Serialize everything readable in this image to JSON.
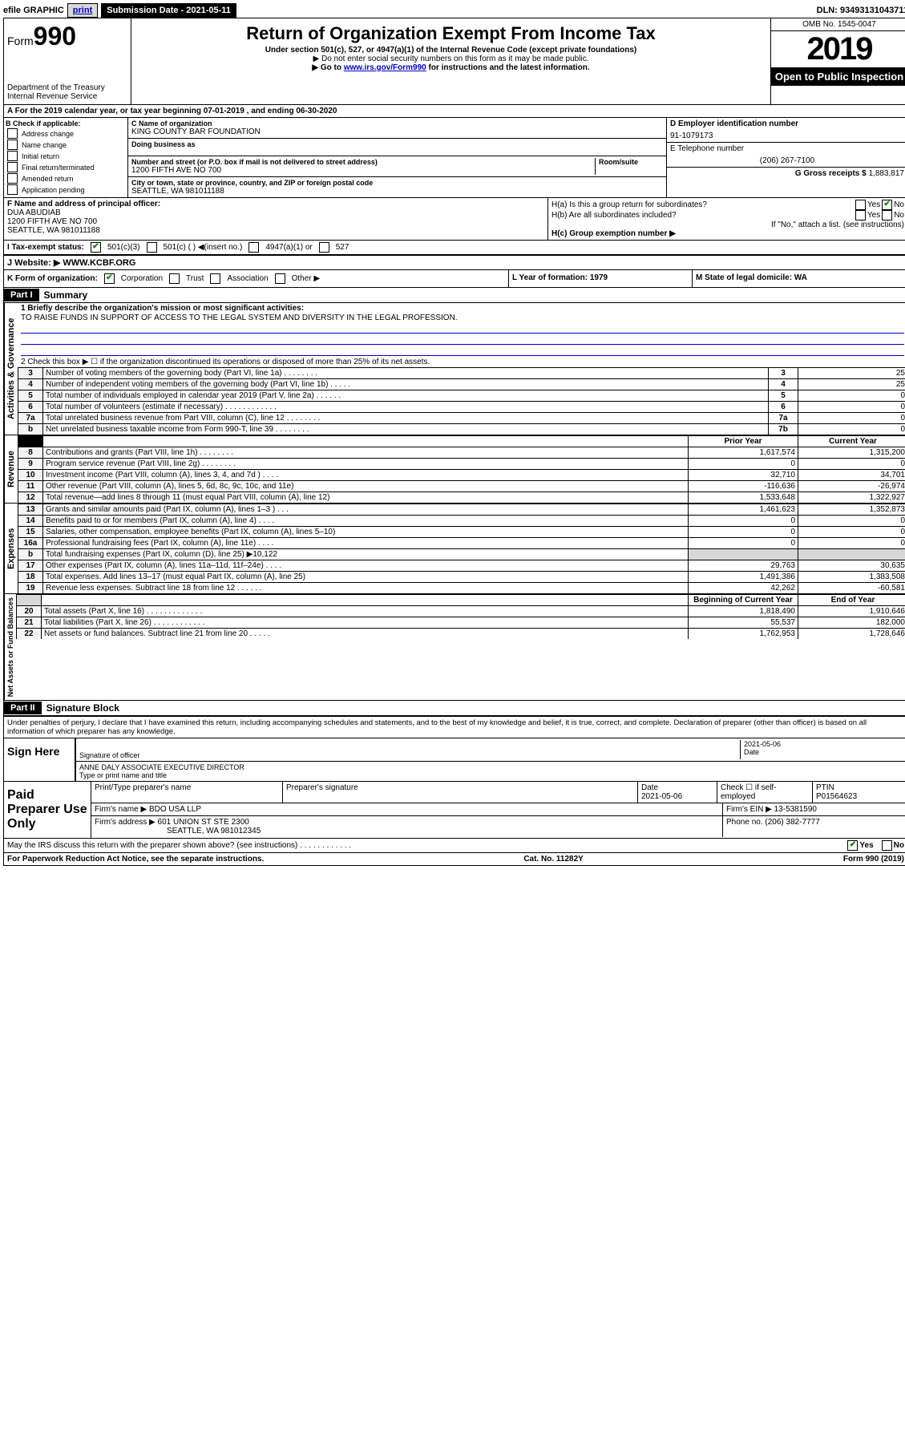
{
  "topbar": {
    "efile_label": "efile GRAPHIC",
    "print": "print",
    "submission": "Submission Date - 2021-05-11",
    "dln": "DLN: 93493131043711"
  },
  "header": {
    "form_prefix": "Form",
    "form_num": "990",
    "dept": "Department of the Treasury",
    "irs": "Internal Revenue Service",
    "title": "Return of Organization Exempt From Income Tax",
    "sub1": "Under section 501(c), 527, or 4947(a)(1) of the Internal Revenue Code (except private foundations)",
    "sub2": "▶ Do not enter social security numbers on this form as it may be made public.",
    "goto_pre": "▶ Go to ",
    "goto_link": "www.irs.gov/Form990",
    "goto_post": " for instructions and the latest information.",
    "omb": "OMB No. 1545-0047",
    "year": "2019",
    "open": "Open to Public Inspection"
  },
  "period": "For the 2019 calendar year, or tax year beginning 07-01-2019    , and ending 06-30-2020",
  "checkB": {
    "label": "B Check if applicable:",
    "addr": "Address change",
    "name": "Name change",
    "init": "Initial return",
    "final": "Final return/terminated",
    "amend": "Amended return",
    "app": "Application pending"
  },
  "entity": {
    "c_label": "C Name of organization",
    "name": "KING COUNTY BAR FOUNDATION",
    "dba_label": "Doing business as",
    "addr_label": "Number and street (or P.O. box if mail is not delivered to street address)",
    "room_label": "Room/suite",
    "addr": "1200 FIFTH AVE NO 700",
    "city_label": "City or town, state or province, country, and ZIP or foreign postal code",
    "city": "SEATTLE, WA  981011188"
  },
  "right": {
    "d_label": "D Employer identification number",
    "ein": "91-1079173",
    "e_label": "E Telephone number",
    "tel": "(206) 267-7100",
    "g_label": "G Gross receipts $",
    "gross": "1,883,817"
  },
  "secF": {
    "label": "F Name and address of principal officer:",
    "name": "DUA ABUDIAB",
    "addr1": "1200 FIFTH AVE NO 700",
    "addr2": "SEATTLE, WA  981011188"
  },
  "secH": {
    "ha": "H(a)  Is this a group return for subordinates?",
    "hb": "H(b)  Are all subordinates included?",
    "hb2": "If \"No,\" attach a list. (see instructions)",
    "hc": "H(c)  Group exemption number ▶",
    "yes": "Yes",
    "no": "No"
  },
  "taxex": {
    "i": "I  Tax-exempt status:",
    "c3": "501(c)(3)",
    "c": "501(c) (   ) ◀(insert no.)",
    "a1": "4947(a)(1) or",
    "n527": "527"
  },
  "website": {
    "j": "J   Website: ▶",
    "url": "WWW.KCBF.ORG"
  },
  "kline": {
    "k": "K Form of organization:",
    "corp": "Corporation",
    "trust": "Trust",
    "assoc": "Association",
    "other": "Other ▶",
    "l": "L Year of formation: 1979",
    "m": "M State of legal domicile: WA"
  },
  "parts": {
    "p1": "Part I",
    "p1t": "Summary",
    "p2": "Part II",
    "p2t": "Signature Block"
  },
  "summary": {
    "l1": "1   Briefly describe the organization's mission or most significant activities:",
    "mission": "TO RAISE FUNDS IN SUPPORT OF ACCESS TO THE LEGAL SYSTEM AND DIVERSITY IN THE LEGAL PROFESSION.",
    "l2": "2   Check this box ▶ ☐  if the organization discontinued its operations or disposed of more than 25% of its net assets.",
    "rows": [
      {
        "n": "3",
        "t": "Number of voting members of the governing body (Part VI, line 1a)  .   .   .   .   .   .   .   .",
        "c": "3",
        "v": "25"
      },
      {
        "n": "4",
        "t": "Number of independent voting members of the governing body (Part VI, line 1b)  .   .   .   .   .",
        "c": "4",
        "v": "25"
      },
      {
        "n": "5",
        "t": "Total number of individuals employed in calendar year 2019 (Part V, line 2a)  .   .   .   .   .   .",
        "c": "5",
        "v": "0"
      },
      {
        "n": "6",
        "t": "Total number of volunteers (estimate if necessary)   .   .   .   .   .   .   .   .   .   .   .   .",
        "c": "6",
        "v": "0"
      },
      {
        "n": "7a",
        "t": "Total unrelated business revenue from Part VIII, column (C), line 12  .   .   .   .   .   .   .   .",
        "c": "7a",
        "v": "0"
      },
      {
        "n": "b",
        "t": "Net unrelated business taxable income from Form 990-T, line 39   .   .   .   .   .   .   .   .",
        "c": "7b",
        "v": "0"
      }
    ],
    "col_prior": "Prior Year",
    "col_curr": "Current Year",
    "rev_rows": [
      {
        "n": "8",
        "t": "Contributions and grants (Part VIII, line 1h)   .   .   .   .   .   .   .   .",
        "p": "1,617,574",
        "c": "1,315,200"
      },
      {
        "n": "9",
        "t": "Program service revenue (Part VIII, line 2g)   .   .   .   .   .   .   .   .",
        "p": "0",
        "c": "0"
      },
      {
        "n": "10",
        "t": "Investment income (Part VIII, column (A), lines 3, 4, and 7d )   .   .   .   .",
        "p": "32,710",
        "c": "34,701"
      },
      {
        "n": "11",
        "t": "Other revenue (Part VIII, column (A), lines 5, 6d, 8c, 9c, 10c, and 11e)",
        "p": "-116,636",
        "c": "-26,974"
      },
      {
        "n": "12",
        "t": "Total revenue—add lines 8 through 11 (must equal Part VIII, column (A), line 12)",
        "p": "1,533,648",
        "c": "1,322,927"
      }
    ],
    "exp_rows": [
      {
        "n": "13",
        "t": "Grants and similar amounts paid (Part IX, column (A), lines 1–3 )   .   .   .",
        "p": "1,461,623",
        "c": "1,352,873"
      },
      {
        "n": "14",
        "t": "Benefits paid to or for members (Part IX, column (A), line 4)   .   .   .   .",
        "p": "0",
        "c": "0"
      },
      {
        "n": "15",
        "t": "Salaries, other compensation, employee benefits (Part IX, column (A), lines 5–10)",
        "p": "0",
        "c": "0"
      },
      {
        "n": "16a",
        "t": "Professional fundraising fees (Part IX, column (A), line 11e)   .   .   .   .",
        "p": "0",
        "c": "0"
      },
      {
        "n": "b",
        "t": "Total fundraising expenses (Part IX, column (D), line 25) ▶10,122",
        "p": "",
        "c": "",
        "blank": true
      },
      {
        "n": "17",
        "t": "Other expenses (Part IX, column (A), lines 11a–11d, 11f–24e)   .   .   .   .",
        "p": "29,763",
        "c": "30,635"
      },
      {
        "n": "18",
        "t": "Total expenses. Add lines 13–17 (must equal Part IX, column (A), line 25)",
        "p": "1,491,386",
        "c": "1,383,508"
      },
      {
        "n": "19",
        "t": "Revenue less expenses. Subtract line 18 from line 12   .   .   .   .   .   .",
        "p": "42,262",
        "c": "-60,581"
      }
    ],
    "col_begin": "Beginning of Current Year",
    "col_end": "End of Year",
    "na_rows": [
      {
        "n": "20",
        "t": "Total assets (Part X, line 16)   .   .   .   .   .   .   .   .   .   .   .   .   .",
        "p": "1,818,490",
        "c": "1,910,646"
      },
      {
        "n": "21",
        "t": "Total liabilities (Part X, line 26)   .   .   .   .   .   .   .   .   .   .   .   .",
        "p": "55,537",
        "c": "182,000"
      },
      {
        "n": "22",
        "t": "Net assets or fund balances. Subtract line 21 from line 20   .   .   .   .   .",
        "p": "1,762,953",
        "c": "1,728,646"
      }
    ],
    "sidetabs": {
      "gov": "Activities & Governance",
      "rev": "Revenue",
      "exp": "Expenses",
      "na": "Net Assets or Fund Balances"
    }
  },
  "perjury": "Under penalties of perjury, I declare that I have examined this return, including accompanying schedules and statements, and to the best of my knowledge and belief, it is true, correct, and complete. Declaration of preparer (other than officer) is based on all information of which preparer has any knowledge.",
  "sign": {
    "here": "Sign Here",
    "sig_of": "Signature of officer",
    "date": "2021-05-06",
    "date_lbl": "Date",
    "name": "ANNE DALY  ASSOCIATE EXECUTIVE DIRECTOR",
    "name_lbl": "Type or print name and title"
  },
  "paid": {
    "title": "Paid Preparer Use Only",
    "h1": "Print/Type preparer's name",
    "h2": "Preparer's signature",
    "h3": "Date",
    "h3v": "2021-05-06",
    "h4": "Check ☐ if self-employed",
    "h5": "PTIN",
    "ptin": "P01564623",
    "firm": "Firm's name     ▶",
    "firmv": "BDO USA LLP",
    "ein": "Firm's EIN ▶",
    "einv": "13-5381590",
    "addr": "Firm's address ▶",
    "addrv1": "601 UNION ST STE 2300",
    "addrv2": "SEATTLE, WA  981012345",
    "ph": "Phone no.",
    "phv": "(206) 382-7777"
  },
  "discuss": "May the IRS discuss this return with the preparer shown above? (see instructions)   .   .   .   .   .   .   .   .   .   .   .   .",
  "footer": {
    "l": "For Paperwork Reduction Act Notice, see the separate instructions.",
    "m": "Cat. No. 11282Y",
    "r": "Form 990 (2019)"
  }
}
